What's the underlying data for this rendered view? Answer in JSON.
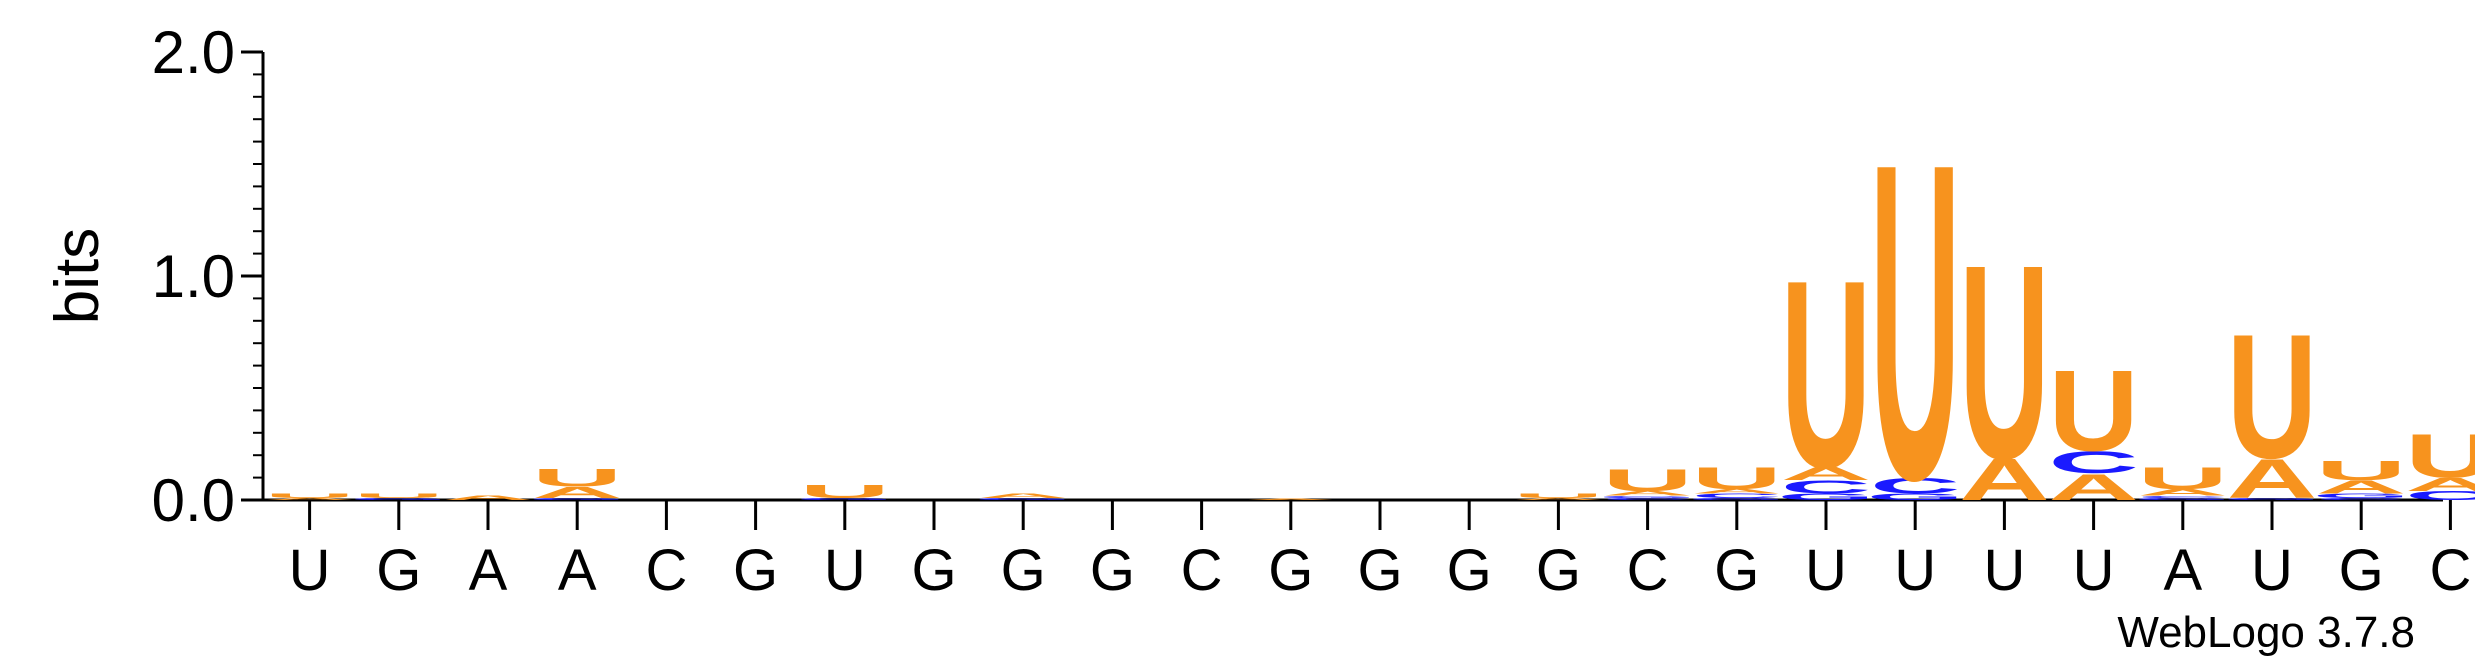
{
  "chart_data": {
    "type": "sequence-logo",
    "ylabel": "bits",
    "ylim": [
      0,
      2.0
    ],
    "yticks": [
      "0.0",
      "1.0",
      "2.0"
    ],
    "footer": "WebLogo 3.7.8",
    "colors": {
      "U": "#f7931e",
      "A": "#f7931e",
      "C": "#1a1aff",
      "G": "#1a1aff"
    },
    "positions": [
      {
        "label": "U",
        "stack": [
          {
            "letter": "A",
            "bits": 0.01
          },
          {
            "letter": "U",
            "bits": 0.02
          }
        ]
      },
      {
        "label": "G",
        "stack": [
          {
            "letter": "G",
            "bits": 0.01
          },
          {
            "letter": "U",
            "bits": 0.02
          }
        ]
      },
      {
        "label": "A",
        "stack": [
          {
            "letter": "A",
            "bits": 0.02
          }
        ]
      },
      {
        "label": "A",
        "stack": [
          {
            "letter": "G",
            "bits": 0.01
          },
          {
            "letter": "A",
            "bits": 0.05
          },
          {
            "letter": "U",
            "bits": 0.08
          }
        ]
      },
      {
        "label": "C",
        "stack": []
      },
      {
        "label": "G",
        "stack": []
      },
      {
        "label": "U",
        "stack": [
          {
            "letter": "G",
            "bits": 0.01
          },
          {
            "letter": "U",
            "bits": 0.06
          }
        ]
      },
      {
        "label": "G",
        "stack": []
      },
      {
        "label": "G",
        "stack": [
          {
            "letter": "G",
            "bits": 0.01
          },
          {
            "letter": "A",
            "bits": 0.02
          }
        ]
      },
      {
        "label": "G",
        "stack": []
      },
      {
        "label": "C",
        "stack": []
      },
      {
        "label": "G",
        "stack": [
          {
            "letter": "A",
            "bits": 0.005
          }
        ]
      },
      {
        "label": "G",
        "stack": []
      },
      {
        "label": "G",
        "stack": []
      },
      {
        "label": "G",
        "stack": [
          {
            "letter": "A",
            "bits": 0.01
          },
          {
            "letter": "U",
            "bits": 0.02
          }
        ]
      },
      {
        "label": "C",
        "stack": [
          {
            "letter": "C",
            "bits": 0.01
          },
          {
            "letter": "G",
            "bits": 0.01
          },
          {
            "letter": "A",
            "bits": 0.02
          },
          {
            "letter": "U",
            "bits": 0.1
          }
        ]
      },
      {
        "label": "G",
        "stack": [
          {
            "letter": "G",
            "bits": 0.01
          },
          {
            "letter": "C",
            "bits": 0.02
          },
          {
            "letter": "A",
            "bits": 0.02
          },
          {
            "letter": "U",
            "bits": 0.1
          }
        ]
      },
      {
        "label": "U",
        "stack": [
          {
            "letter": "G",
            "bits": 0.03
          },
          {
            "letter": "C",
            "bits": 0.06
          },
          {
            "letter": "A",
            "bits": 0.06
          },
          {
            "letter": "U",
            "bits": 0.86
          }
        ]
      },
      {
        "label": "U",
        "stack": [
          {
            "letter": "G",
            "bits": 0.03
          },
          {
            "letter": "C",
            "bits": 0.07
          },
          {
            "letter": "U",
            "bits": 1.45
          }
        ]
      },
      {
        "label": "U",
        "stack": [
          {
            "letter": "A",
            "bits": 0.19
          },
          {
            "letter": "U",
            "bits": 0.89
          }
        ]
      },
      {
        "label": "U",
        "stack": [
          {
            "letter": "A",
            "bits": 0.12
          },
          {
            "letter": "C",
            "bits": 0.1
          },
          {
            "letter": "U",
            "bits": 0.37
          }
        ]
      },
      {
        "label": "A",
        "stack": [
          {
            "letter": "G",
            "bits": 0.01
          },
          {
            "letter": "C",
            "bits": 0.01
          },
          {
            "letter": "A",
            "bits": 0.03
          },
          {
            "letter": "U",
            "bits": 0.1
          }
        ]
      },
      {
        "label": "U",
        "stack": [
          {
            "letter": "G",
            "bits": 0.01
          },
          {
            "letter": "A",
            "bits": 0.18
          },
          {
            "letter": "U",
            "bits": 0.57
          }
        ]
      },
      {
        "label": "G",
        "stack": [
          {
            "letter": "C",
            "bits": 0.01
          },
          {
            "letter": "G",
            "bits": 0.02
          },
          {
            "letter": "A",
            "bits": 0.06
          },
          {
            "letter": "U",
            "bits": 0.09
          }
        ]
      },
      {
        "label": "C",
        "stack": [
          {
            "letter": "C",
            "bits": 0.04
          },
          {
            "letter": "A",
            "bits": 0.06
          },
          {
            "letter": "U",
            "bits": 0.2
          }
        ]
      }
    ]
  }
}
